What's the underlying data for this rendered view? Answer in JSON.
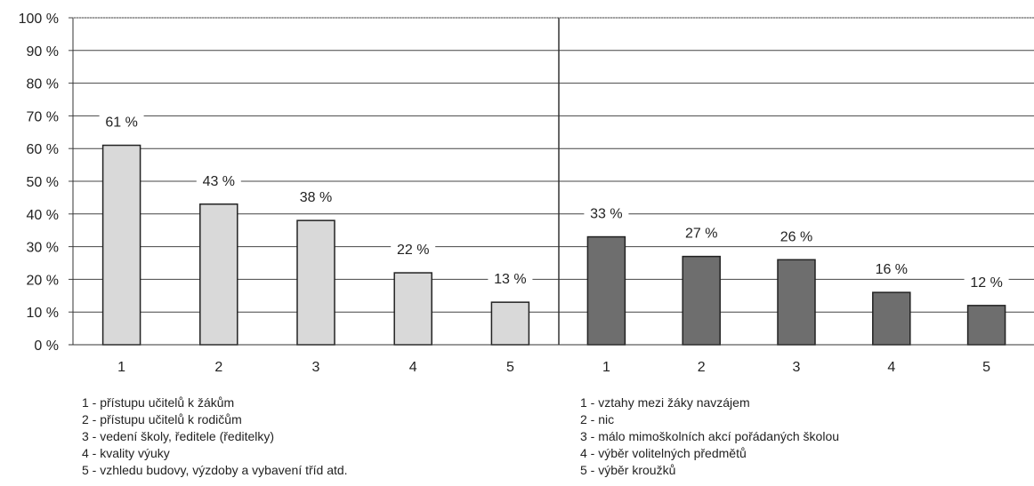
{
  "chart_data": [
    {
      "type": "bar",
      "categories": [
        "1",
        "2",
        "3",
        "4",
        "5"
      ],
      "values": [
        61,
        43,
        38,
        22,
        13
      ],
      "data_labels": [
        "61 %",
        "43 %",
        "38 %",
        "22 %",
        "13 %"
      ],
      "color": "#d9d9d9",
      "ylim": [
        0,
        100
      ],
      "yticks": [
        "0 %",
        "10 %",
        "20 %",
        "30 %",
        "40 %",
        "50 %",
        "60 %",
        "70 %",
        "80 %",
        "90 %",
        "100 %"
      ],
      "grid": true,
      "legend": [
        "1 - přístupu učitelů k žákům",
        "2 - přístupu učitelů k rodičům",
        "3 - vedení školy, ředitele (ředitelky)",
        "4 - kvality výuky",
        "5 - vzhledu budovy, výzdoby a vybavení tříd atd."
      ]
    },
    {
      "type": "bar",
      "categories": [
        "1",
        "2",
        "3",
        "4",
        "5"
      ],
      "values": [
        33,
        27,
        26,
        16,
        12
      ],
      "data_labels": [
        "33 %",
        "27 %",
        "26 %",
        "16 %",
        "12 %"
      ],
      "color": "#6e6e6e",
      "ylim": [
        0,
        100
      ],
      "grid": true,
      "legend": [
        "1 - vztahy mezi žáky navzájem",
        "2 - nic",
        "3 - málo mimoškolních akcí pořádaných školou",
        "4 - výběr volitelných předmětů",
        "5 - výběr kroužků"
      ]
    }
  ]
}
